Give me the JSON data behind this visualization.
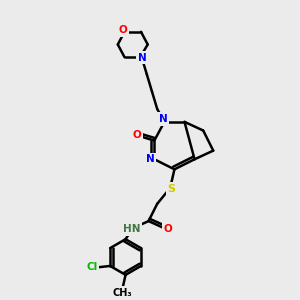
{
  "bg_color": "#ebebeb",
  "atom_colors": {
    "N": "#0000ff",
    "O": "#ff0000",
    "S": "#cccc00",
    "Cl": "#00bb00",
    "C": "#000000",
    "H": "#447744"
  },
  "bond_color": "#000000",
  "lw": 1.8
}
